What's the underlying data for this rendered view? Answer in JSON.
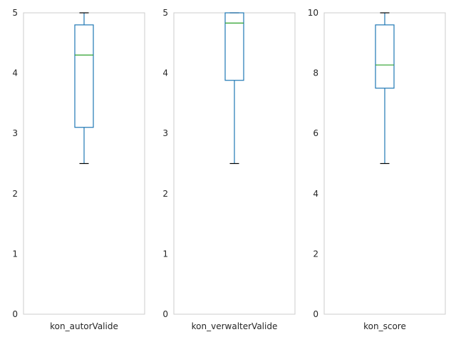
{
  "chart_data": [
    {
      "type": "box",
      "category": "kon_autorValide",
      "ylim": [
        0,
        5
      ],
      "yticks": [
        "0",
        "1",
        "2",
        "3",
        "4",
        "5"
      ],
      "box": {
        "whislo": 2.5,
        "q1": 3.1,
        "median": 4.3,
        "q3": 4.8,
        "whishi": 5.0
      },
      "grid": false
    },
    {
      "type": "box",
      "category": "kon_verwalterValide",
      "ylim": [
        0,
        5
      ],
      "yticks": [
        "0",
        "1",
        "2",
        "3",
        "4",
        "5"
      ],
      "box": {
        "whislo": 2.5,
        "q1": 3.88,
        "median": 4.83,
        "q3": 5.0,
        "whishi": 5.0
      },
      "grid": false
    },
    {
      "type": "box",
      "category": "kon_score",
      "ylim": [
        0,
        10
      ],
      "yticks": [
        "0",
        "2",
        "4",
        "6",
        "8",
        "10"
      ],
      "box": {
        "whislo": 5.0,
        "q1": 7.5,
        "median": 8.27,
        "q3": 9.6,
        "whishi": 10.0
      },
      "grid": false
    }
  ],
  "colors": {
    "box": "#1f77b4",
    "median": "#2ca02c",
    "whisker_cap": "#000000",
    "frame": "#cccccc",
    "text": "#262626"
  }
}
